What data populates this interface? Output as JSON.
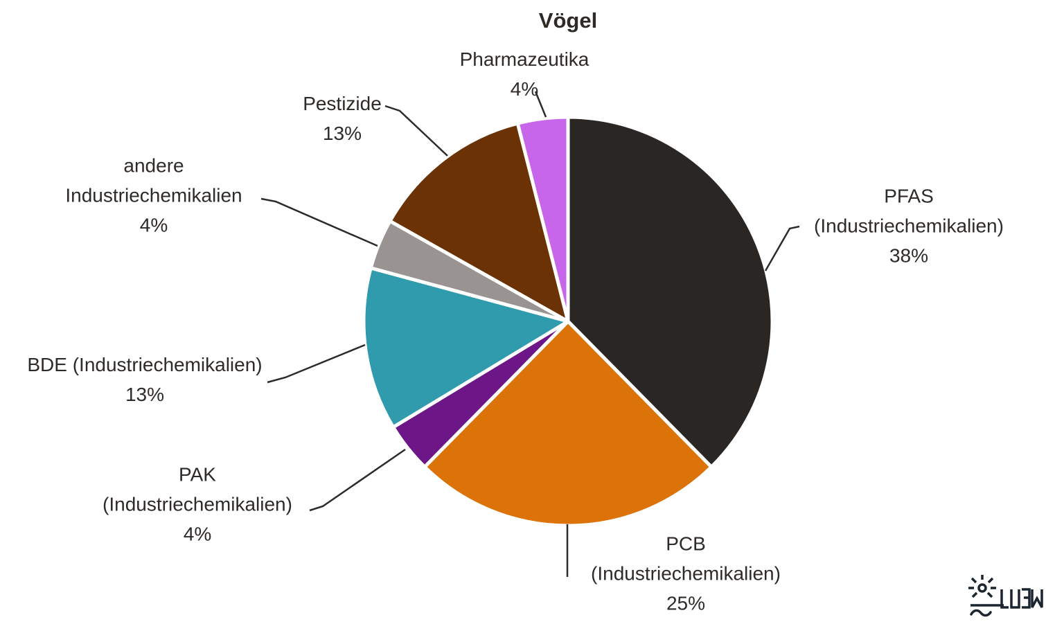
{
  "title": "Vögel",
  "chart_data": {
    "type": "pie",
    "title": "Vögel",
    "start_angle_deg": 0,
    "direction": "clockwise",
    "legend_position": "none",
    "separator_color": "#ffffff",
    "leader_line_color": "#2B2B2B",
    "slices": [
      {
        "id": "pfas",
        "label": "PFAS (Industriechemikalien)",
        "label_lines": [
          "PFAS",
          "(Industriechemikalien)"
        ],
        "value": 38,
        "pct_label": "38%",
        "color": "#2A2623"
      },
      {
        "id": "pcb",
        "label": "PCB (Industriechemikalien)",
        "label_lines": [
          "PCB",
          "(Industriechemikalien)"
        ],
        "value": 25,
        "pct_label": "25%",
        "color": "#DC7309"
      },
      {
        "id": "pak",
        "label": "PAK (Industriechemikalien)",
        "label_lines": [
          "PAK",
          "(Industriechemikalien)"
        ],
        "value": 4,
        "pct_label": "4%",
        "color": "#6C1687"
      },
      {
        "id": "bde",
        "label": "BDE (Industriechemikalien)",
        "label_lines": [
          "BDE (Industriechemikalien)"
        ],
        "value": 13,
        "pct_label": "13%",
        "color": "#2F9BAC"
      },
      {
        "id": "andere",
        "label": "andere Industriechemikalien",
        "label_lines": [
          "andere",
          "Industriechemikalien"
        ],
        "value": 4,
        "pct_label": "4%",
        "color": "#999492"
      },
      {
        "id": "pestizide",
        "label": "Pestizide",
        "label_lines": [
          "Pestizide"
        ],
        "value": 13,
        "pct_label": "13%",
        "color": "#6B3305"
      },
      {
        "id": "pharmazeutika",
        "label": "Pharmazeutika",
        "label_lines": [
          "Pharmazeutika"
        ],
        "value": 4,
        "pct_label": "4%",
        "color": "#C765EB"
      }
    ]
  },
  "logo": {
    "name": "LUBW",
    "text": "LUBW",
    "color": "#1C2430"
  }
}
